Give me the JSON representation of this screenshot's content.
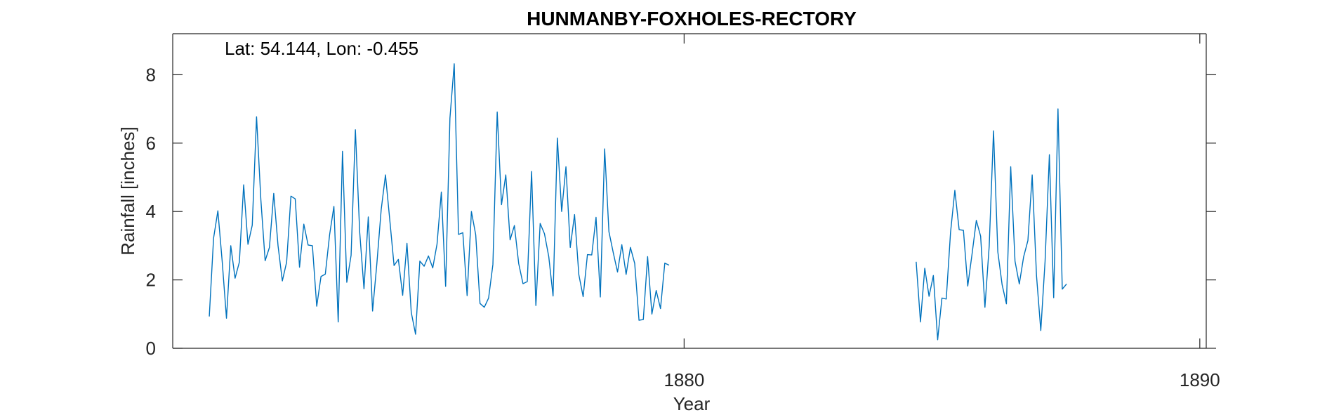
{
  "chart_data": {
    "type": "line",
    "title": "HUNMANBY-FOXHOLES-RECTORY",
    "annotation": "Lat: 54.144, Lon: -0.455",
    "xlabel": "Year",
    "ylabel": "Rainfall [inches]",
    "xlim": [
      1870.083,
      1890.125
    ],
    "ylim": [
      0,
      9.2
    ],
    "xticks": [
      1880,
      1890
    ],
    "xtick_labels": [
      "1880",
      "1890"
    ],
    "yticks": [
      0,
      2,
      4,
      6,
      8
    ],
    "ytick_labels": [
      "0",
      "2",
      "4",
      "6",
      "8"
    ],
    "grid": false,
    "color": "#0072BD",
    "series": [
      {
        "segments": [
          {
            "x_start": 1870.792,
            "step_months": 1,
            "values": [
              0.93,
              3.22,
              4.02,
              2.55,
              0.88,
              3.0,
              2.05,
              2.52,
              4.78,
              3.04,
              3.6,
              6.77,
              4.35,
              2.56,
              2.95,
              4.53,
              3.0,
              1.97,
              2.52,
              4.45,
              4.37,
              2.37,
              3.63,
              3.02,
              3.0,
              1.23,
              2.1,
              2.17,
              3.32,
              4.15,
              0.77,
              5.76,
              1.93,
              2.72,
              6.39,
              3.4,
              1.74,
              3.84,
              1.09,
              2.48,
              4.05,
              5.07,
              3.76,
              2.42,
              2.6,
              1.55,
              3.07,
              1.05,
              0.41,
              2.55,
              2.4,
              2.7,
              2.35,
              3.05,
              4.57,
              1.81,
              6.73,
              8.32,
              3.33,
              3.38,
              1.54,
              4.0,
              3.32,
              1.31,
              1.2,
              1.47,
              2.45,
              6.91,
              4.2,
              5.07,
              3.17,
              3.59,
              2.48,
              1.89,
              1.95,
              5.17,
              1.25,
              3.65,
              3.35,
              2.68,
              1.53,
              6.15,
              4.0,
              5.31,
              2.95,
              3.91,
              2.15,
              1.51,
              2.74,
              2.73,
              3.83,
              1.5,
              5.83,
              3.41,
              2.8,
              2.23,
              3.03,
              2.16,
              2.95,
              2.48,
              0.82,
              0.84,
              2.68,
              1.0,
              1.69,
              1.16,
              2.49,
              2.43
            ]
          },
          {
            "x_start": 1884.5,
            "step_months": 1,
            "values": [
              2.53,
              0.77,
              2.34,
              1.52,
              2.13,
              0.25,
              1.47,
              1.44,
              3.39,
              4.62,
              3.47,
              3.45,
              1.82,
              2.75,
              3.74,
              3.28,
              1.2,
              3.0,
              6.36,
              2.82,
              1.86,
              1.3,
              5.31,
              2.55,
              1.88,
              2.67,
              3.15,
              5.07,
              2.13,
              0.52,
              2.55,
              5.66,
              1.48,
              7.0,
              1.73,
              1.88
            ]
          }
        ]
      }
    ]
  }
}
